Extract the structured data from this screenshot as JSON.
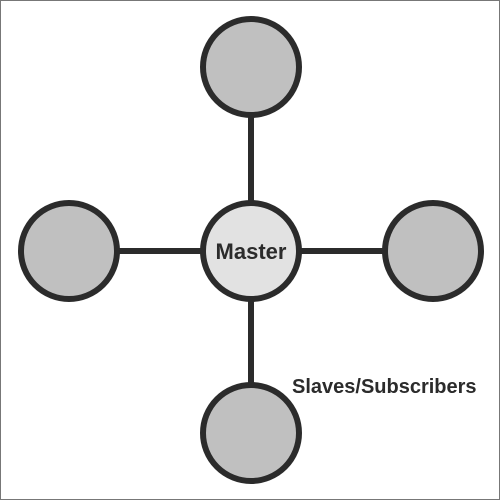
{
  "diagram": {
    "center": {
      "label": "Master",
      "fill": "#e2e2e2"
    },
    "satellites": [
      {
        "id": "top",
        "fill": "#c0c0c0"
      },
      {
        "id": "left",
        "fill": "#c0c0c0"
      },
      {
        "id": "right",
        "fill": "#c0c0c0"
      },
      {
        "id": "bottom",
        "fill": "#c0c0c0"
      }
    ],
    "group_label": "Slaves/Subscribers",
    "colors": {
      "stroke": "#2b2b2b",
      "frame": "#777777",
      "background": "#ffffff"
    }
  }
}
